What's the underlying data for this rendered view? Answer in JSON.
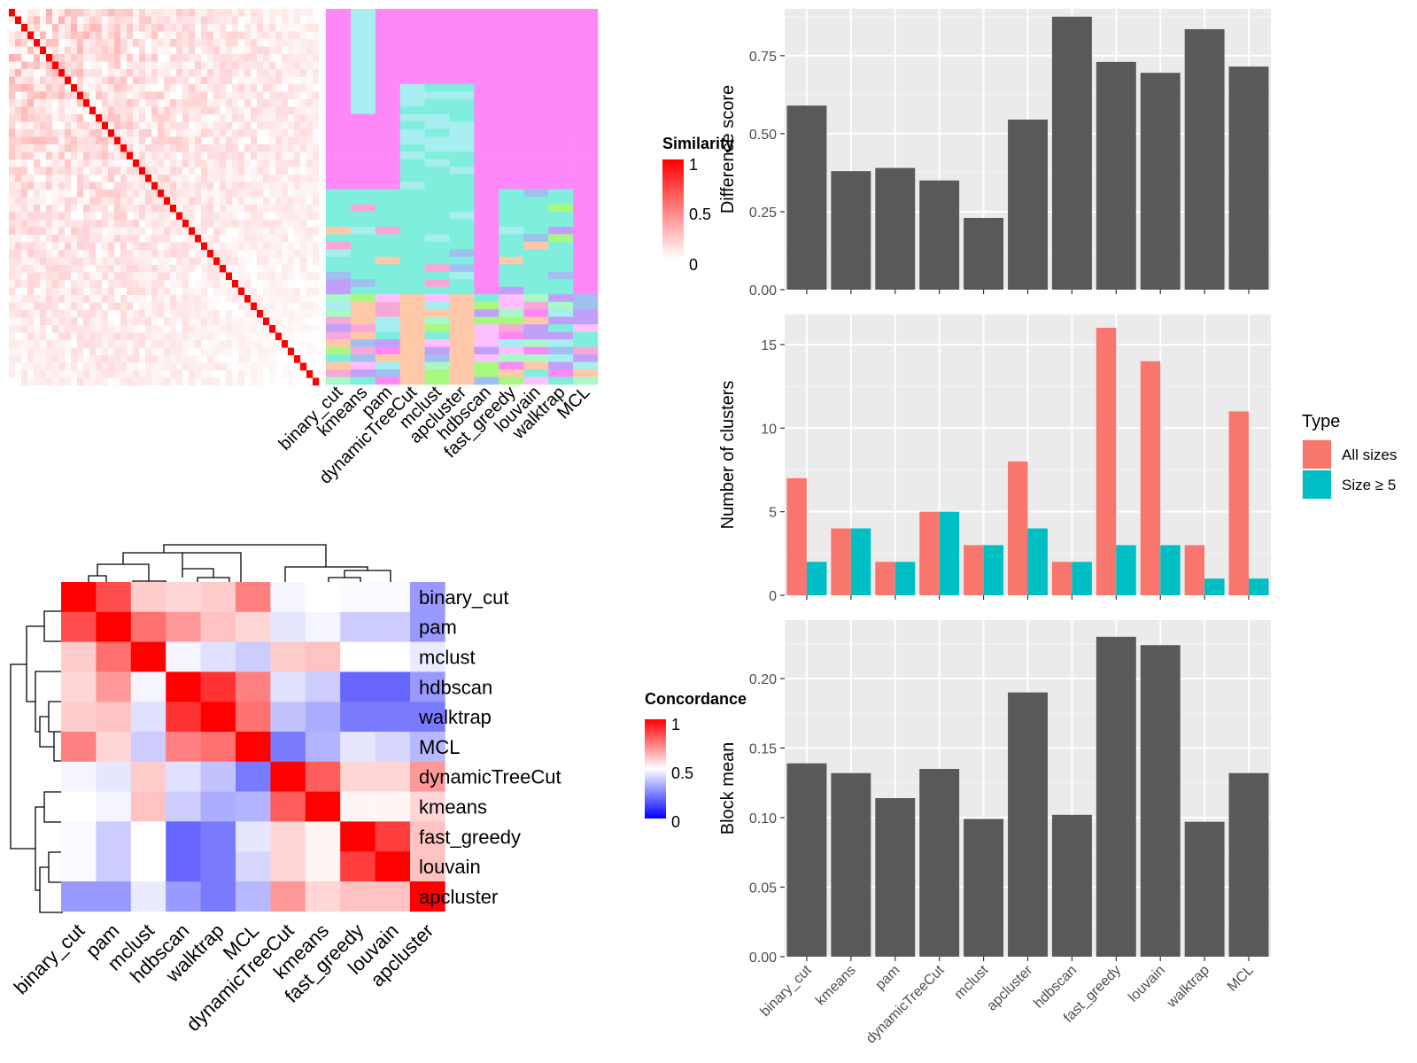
{
  "methods_top": [
    "binary_cut",
    "kmeans",
    "pam",
    "dynamicTreeCut",
    "mclust",
    "apcluster",
    "hdbscan",
    "fast_greedy",
    "louvain",
    "walktrap",
    "MCL"
  ],
  "methods_concordance": [
    "binary_cut",
    "pam",
    "mclust",
    "hdbscan",
    "walktrap",
    "MCL",
    "dynamicTreeCut",
    "kmeans",
    "fast_greedy",
    "louvain",
    "apcluster"
  ],
  "similarity_legend": {
    "title": "Similarity",
    "ticks": [
      "1",
      "0.5",
      "0"
    ]
  },
  "concordance_legend": {
    "title": "Concordance",
    "ticks": [
      "1",
      "0.5",
      "0"
    ]
  },
  "colors": {
    "bar": "#595959",
    "all_sizes": "#F8766D",
    "size_ge5": "#00BFC4",
    "panel_bg": "#EBEBEB",
    "heat_high": "#FF0000",
    "heat_mid": "#FFFFFF",
    "heat_low": "#0000FF",
    "cluster_palette": [
      "#FF88F8",
      "#7FEEDD",
      "#A6EEF0",
      "#FFC8A8",
      "#A8F880",
      "#A0C0F0",
      "#F8A8D8",
      "#C0A0F8",
      "#FFC0FF",
      "#A8F8C8"
    ]
  },
  "chart_data": [
    {
      "type": "heatmap",
      "title": "",
      "legend_title": "Similarity",
      "scale": [
        0,
        1
      ],
      "note": "term-by-term similarity matrix, diagonal = 1"
    },
    {
      "type": "heatmap",
      "title": "",
      "columns": [
        "binary_cut",
        "kmeans",
        "pam",
        "dynamicTreeCut",
        "mclust",
        "apcluster",
        "hdbscan",
        "fast_greedy",
        "louvain",
        "walktrap",
        "MCL"
      ],
      "note": "cluster membership of each term for each method"
    },
    {
      "type": "heatmap",
      "legend_title": "Concordance",
      "scale": [
        0,
        1
      ],
      "rows": [
        "binary_cut",
        "pam",
        "mclust",
        "hdbscan",
        "walktrap",
        "MCL",
        "dynamicTreeCut",
        "kmeans",
        "fast_greedy",
        "louvain",
        "apcluster"
      ],
      "columns": [
        "binary_cut",
        "pam",
        "mclust",
        "hdbscan",
        "walktrap",
        "MCL",
        "dynamicTreeCut",
        "kmeans",
        "fast_greedy",
        "louvain",
        "apcluster"
      ],
      "values": [
        [
          1.0,
          0.85,
          0.6,
          0.58,
          0.6,
          0.75,
          0.48,
          0.5,
          0.49,
          0.49,
          0.3
        ],
        [
          0.85,
          1.0,
          0.78,
          0.7,
          0.62,
          0.58,
          0.45,
          0.48,
          0.4,
          0.4,
          0.3
        ],
        [
          0.6,
          0.78,
          1.0,
          0.48,
          0.44,
          0.4,
          0.6,
          0.62,
          0.5,
          0.5,
          0.46
        ],
        [
          0.58,
          0.7,
          0.48,
          1.0,
          0.9,
          0.75,
          0.44,
          0.4,
          0.2,
          0.2,
          0.3
        ],
        [
          0.6,
          0.62,
          0.44,
          0.9,
          1.0,
          0.78,
          0.38,
          0.34,
          0.24,
          0.24,
          0.24
        ],
        [
          0.75,
          0.58,
          0.4,
          0.75,
          0.78,
          1.0,
          0.24,
          0.35,
          0.45,
          0.42,
          0.36
        ],
        [
          0.48,
          0.45,
          0.6,
          0.44,
          0.38,
          0.24,
          1.0,
          0.82,
          0.58,
          0.58,
          0.7
        ],
        [
          0.5,
          0.48,
          0.62,
          0.4,
          0.34,
          0.35,
          0.82,
          1.0,
          0.52,
          0.52,
          0.58
        ],
        [
          0.49,
          0.4,
          0.5,
          0.2,
          0.24,
          0.45,
          0.58,
          0.52,
          1.0,
          0.88,
          0.62
        ],
        [
          0.49,
          0.4,
          0.5,
          0.2,
          0.24,
          0.42,
          0.58,
          0.52,
          0.88,
          1.0,
          0.62
        ],
        [
          0.3,
          0.3,
          0.46,
          0.3,
          0.24,
          0.36,
          0.7,
          0.58,
          0.62,
          0.62,
          1.0
        ]
      ]
    },
    {
      "type": "bar",
      "categories": [
        "binary_cut",
        "kmeans",
        "pam",
        "dynamicTreeCut",
        "mclust",
        "apcluster",
        "hdbscan",
        "fast_greedy",
        "louvain",
        "walktrap",
        "MCL"
      ],
      "values": [
        0.59,
        0.38,
        0.39,
        0.35,
        0.23,
        0.545,
        0.875,
        0.73,
        0.695,
        0.835,
        0.715
      ],
      "ylabel": "Difference score",
      "ylim": [
        0,
        0.9
      ],
      "yticks": [
        "0.00",
        "0.25",
        "0.50",
        "0.75"
      ],
      "grid": true
    },
    {
      "type": "bar",
      "categories": [
        "binary_cut",
        "kmeans",
        "pam",
        "dynamicTreeCut",
        "mclust",
        "apcluster",
        "hdbscan",
        "fast_greedy",
        "louvain",
        "walktrap",
        "MCL"
      ],
      "series": [
        {
          "name": "All sizes",
          "values": [
            7,
            4,
            2,
            5,
            3,
            8,
            2,
            16,
            14,
            3,
            11
          ]
        },
        {
          "name": "Size ≥ 5",
          "values": [
            2,
            4,
            2,
            5,
            3,
            4,
            2,
            3,
            3,
            1,
            1
          ]
        }
      ],
      "ylabel": "Number of clusters",
      "ylim": [
        0,
        16.8
      ],
      "yticks": [
        "0",
        "5",
        "10",
        "15"
      ],
      "legend_title": "Type",
      "legend_position": "right",
      "grid": true
    },
    {
      "type": "bar",
      "categories": [
        "binary_cut",
        "kmeans",
        "pam",
        "dynamicTreeCut",
        "mclust",
        "apcluster",
        "hdbscan",
        "fast_greedy",
        "louvain",
        "walktrap",
        "MCL"
      ],
      "values": [
        0.139,
        0.132,
        0.114,
        0.135,
        0.099,
        0.19,
        0.102,
        0.23,
        0.224,
        0.097,
        0.132
      ],
      "ylabel": "Block mean",
      "ylim": [
        0,
        0.242
      ],
      "yticks": [
        "0.00",
        "0.05",
        "0.10",
        "0.15",
        "0.20"
      ],
      "grid": true
    }
  ]
}
